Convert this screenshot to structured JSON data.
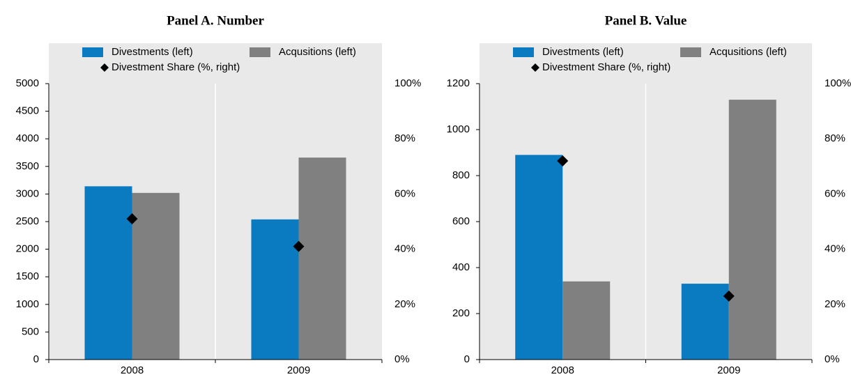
{
  "chart_data": [
    {
      "type": "bar",
      "title": "Panel A. Number",
      "categories": [
        "2008",
        "2009"
      ],
      "series": [
        {
          "name": "Divestments (left)",
          "color": "#0b7bc1",
          "values": [
            3140,
            2540
          ]
        },
        {
          "name": "Acqusitions (left)",
          "color": "#808080",
          "values": [
            3020,
            3660
          ]
        },
        {
          "name": "Divestment Share (%, right)",
          "color": "#000000",
          "axis": "y2",
          "marker": "diamond",
          "values": [
            51,
            41
          ]
        }
      ],
      "ylim": [
        0,
        5000
      ],
      "yticks": [
        0,
        500,
        1000,
        1500,
        2000,
        2500,
        3000,
        3500,
        4000,
        4500,
        5000
      ],
      "y2lim": [
        0,
        100
      ],
      "y2ticks": [
        {
          "value": 0,
          "label": "0%"
        },
        {
          "value": 20,
          "label": "20%"
        },
        {
          "value": 40,
          "label": "40%"
        },
        {
          "value": 60,
          "label": "60%"
        },
        {
          "value": 80,
          "label": "80%"
        },
        {
          "value": 100,
          "label": "100%"
        }
      ],
      "legend": "top"
    },
    {
      "type": "bar",
      "title": "Panel B. Value",
      "categories": [
        "2008",
        "2009"
      ],
      "series": [
        {
          "name": "Divestments (left)",
          "color": "#0b7bc1",
          "values": [
            890,
            330
          ]
        },
        {
          "name": "Acqusitions (left)",
          "color": "#808080",
          "values": [
            340,
            1130
          ]
        },
        {
          "name": "Divestment Share (%, right)",
          "color": "#000000",
          "axis": "y2",
          "marker": "diamond",
          "values": [
            72,
            23
          ]
        }
      ],
      "ylim": [
        0,
        1200
      ],
      "yticks": [
        0,
        200,
        400,
        600,
        800,
        1000,
        1200
      ],
      "y2lim": [
        0,
        100
      ],
      "y2ticks": [
        {
          "value": 0,
          "label": "0%"
        },
        {
          "value": 20,
          "label": "20%"
        },
        {
          "value": 40,
          "label": "40%"
        },
        {
          "value": 60,
          "label": "60%"
        },
        {
          "value": 80,
          "label": "80%"
        },
        {
          "value": 100,
          "label": "100%"
        }
      ],
      "legend": "top"
    }
  ]
}
